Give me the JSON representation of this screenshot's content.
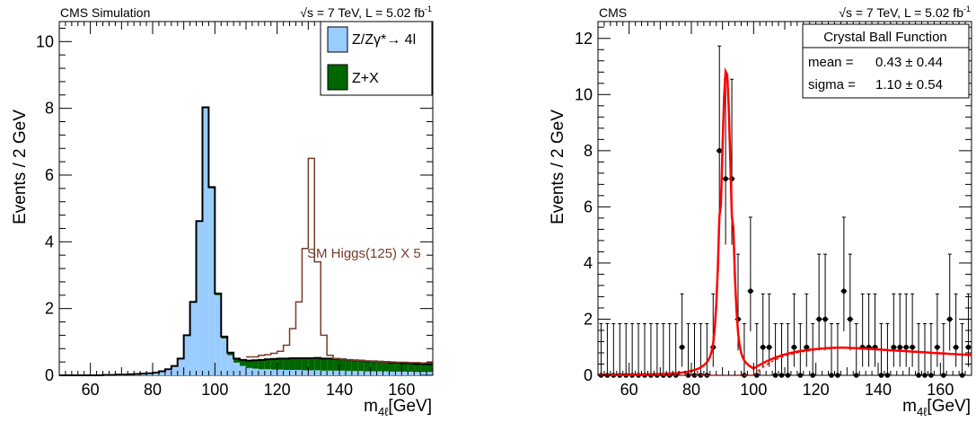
{
  "chart_data": [
    {
      "type": "histogram",
      "header_left": "CMS Simulation",
      "header_right": "√s = 7 TeV, L = 5.02 fb",
      "header_right_sup": "-1",
      "xlabel": "m",
      "xlabel_sub": "4ℓ",
      "xlabel_unit": "[GeV]",
      "ylabel": "Events / 2 GeV",
      "xlim": [
        50,
        170
      ],
      "ylim": [
        0,
        10.6
      ],
      "xticks": [
        "60",
        "80",
        "100",
        "120",
        "140",
        "160"
      ],
      "yticks": [
        "0",
        "2",
        "4",
        "6",
        "8",
        "10"
      ],
      "bin_width": 2,
      "bin_start": 50,
      "series": [
        {
          "name": "Z/Zγ*→ 4l",
          "color": "#99ccff",
          "values": [
            0,
            0,
            0,
            0,
            0,
            0,
            0,
            0.01,
            0.01,
            0.02,
            0.02,
            0.03,
            0.04,
            0.05,
            0.06,
            0.08,
            0.12,
            0.18,
            0.28,
            0.5,
            1.2,
            2.2,
            4.6,
            8.0,
            5.6,
            2.4,
            1.1,
            0.6,
            0.38,
            0.28,
            0.22,
            0.2,
            0.18,
            0.18,
            0.17,
            0.17,
            0.16,
            0.16,
            0.16,
            0.15,
            0.15,
            0.15,
            0.14,
            0.14,
            0.14,
            0.14,
            0.13,
            0.13,
            0.13,
            0.12,
            0.12,
            0.12,
            0.12,
            0.11,
            0.11,
            0.11,
            0.11,
            0.1,
            0.1,
            0.1
          ]
        },
        {
          "name": "Z+X",
          "color": "#006600",
          "values": [
            0,
            0,
            0,
            0,
            0,
            0,
            0,
            0,
            0,
            0,
            0,
            0,
            0,
            0,
            0,
            0,
            0,
            0,
            0,
            0,
            0,
            0,
            0.02,
            0.03,
            0.04,
            0.05,
            0.06,
            0.08,
            0.12,
            0.18,
            0.22,
            0.25,
            0.28,
            0.3,
            0.32,
            0.33,
            0.34,
            0.35,
            0.35,
            0.36,
            0.36,
            0.37,
            0.36,
            0.36,
            0.35,
            0.34,
            0.33,
            0.32,
            0.31,
            0.3,
            0.3,
            0.29,
            0.28,
            0.27,
            0.27,
            0.26,
            0.25,
            0.24,
            0.24,
            0.23
          ]
        },
        {
          "name": "SM Higgs(125) X 5",
          "color": "#7a3a2a",
          "values": [
            0,
            0,
            0,
            0,
            0,
            0,
            0,
            0,
            0,
            0,
            0,
            0,
            0,
            0,
            0,
            0,
            0,
            0,
            0,
            0,
            0,
            0,
            0,
            0,
            0,
            0,
            0,
            0,
            0,
            0,
            0.55,
            0.55,
            0.6,
            0.62,
            0.66,
            0.72,
            0.9,
            1.4,
            2.2,
            3.8,
            6.5,
            3.4,
            1.2,
            0.6,
            0.5,
            0.48,
            0.46,
            0.45,
            0.44,
            0.43,
            0.42,
            0.41,
            0.4,
            0.4,
            0.39,
            0.39,
            0.38,
            0.38,
            0.37,
            0.37
          ]
        }
      ],
      "annotation": "SM Higgs(125) X 5",
      "legend_placement": "top-right"
    },
    {
      "type": "scatter",
      "header_left": "CMS",
      "header_right": "√s = 7 TeV, L = 5.02 fb",
      "header_right_sup": "-1",
      "xlabel": "m",
      "xlabel_sub": "4ℓ",
      "xlabel_unit": "[GeV]",
      "ylabel": "Events / 2 GeV",
      "xlim": [
        50,
        170
      ],
      "ylim": [
        0,
        12.6
      ],
      "xticks": [
        "60",
        "80",
        "100",
        "120",
        "140",
        "160"
      ],
      "yticks": [
        "0",
        "2",
        "4",
        "6",
        "8",
        "10",
        "12"
      ],
      "fit_box": {
        "title": "Crystal Ball Function",
        "rows": [
          {
            "label": "mean =",
            "value": "0.43 ± 0.44"
          },
          {
            "label": "sigma =",
            "value": "1.10 ± 0.54"
          }
        ]
      },
      "points": {
        "x": [
          51,
          53,
          55,
          57,
          59,
          61,
          63,
          65,
          67,
          69,
          71,
          73,
          75,
          77,
          79,
          81,
          83,
          85,
          87,
          89,
          91,
          93,
          95,
          97,
          99,
          101,
          103,
          105,
          107,
          109,
          111,
          113,
          115,
          117,
          119,
          121,
          123,
          125,
          127,
          129,
          131,
          133,
          135,
          137,
          139,
          141,
          143,
          145,
          147,
          149,
          151,
          153,
          155,
          157,
          159,
          161,
          163,
          165,
          167,
          169
        ],
        "y": [
          0,
          0,
          0,
          0,
          0,
          0,
          0,
          0,
          0,
          0,
          0,
          0,
          0,
          1,
          0,
          0,
          0,
          0,
          1,
          8,
          7,
          7,
          2,
          0,
          3,
          0,
          1,
          1,
          0,
          0,
          0,
          1,
          0,
          1,
          0,
          2,
          2,
          0,
          0,
          3,
          2,
          0,
          1,
          1,
          1,
          0,
          0,
          1,
          1,
          1,
          1,
          0,
          0,
          0,
          1,
          0,
          2,
          1,
          0,
          1
        ]
      },
      "fit_curve_color": "#ff0000"
    }
  ]
}
